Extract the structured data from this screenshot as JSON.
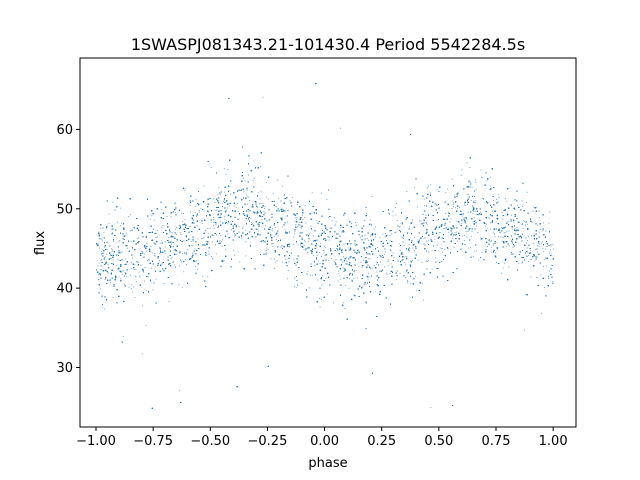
{
  "chart_data": {
    "type": "scatter",
    "title": "1SWASPJ081343.21-101430.4 Period 5542284.5s",
    "xlabel": "phase",
    "ylabel": "flux",
    "xlim": [
      -1.07,
      1.1
    ],
    "ylim": [
      22.5,
      69.0
    ],
    "x_ticks": [
      -1.0,
      -0.75,
      -0.5,
      -0.25,
      0.0,
      0.25,
      0.5,
      0.75,
      1.0
    ],
    "x_tick_labels": [
      "−1.00",
      "−0.75",
      "−0.50",
      "−0.25",
      "0.00",
      "0.25",
      "0.50",
      "0.75",
      "1.00"
    ],
    "y_ticks": [
      30,
      40,
      50,
      60
    ],
    "y_tick_labels": [
      "30",
      "40",
      "50",
      "60"
    ],
    "grid": false,
    "marker_color": "#1f77b4",
    "series": [
      {
        "phase_range": [
          -1.0,
          1.0
        ],
        "approx_point_count": 15000,
        "trend": [
          {
            "phase": -1.0,
            "flux": 44.5
          },
          {
            "phase": -0.9,
            "flux": 44.0
          },
          {
            "phase": -0.8,
            "flux": 43.8
          },
          {
            "phase": -0.7,
            "flux": 45.0
          },
          {
            "phase": -0.6,
            "flux": 46.5
          },
          {
            "phase": -0.5,
            "flux": 47.5
          },
          {
            "phase": -0.4,
            "flux": 49.5
          },
          {
            "phase": -0.3,
            "flux": 49.0
          },
          {
            "phase": -0.2,
            "flux": 47.5
          },
          {
            "phase": -0.1,
            "flux": 46.5
          },
          {
            "phase": 0.0,
            "flux": 44.5
          },
          {
            "phase": 0.1,
            "flux": 44.0
          },
          {
            "phase": 0.2,
            "flux": 43.8
          },
          {
            "phase": 0.3,
            "flux": 45.0
          },
          {
            "phase": 0.4,
            "flux": 46.5
          },
          {
            "phase": 0.5,
            "flux": 47.5
          },
          {
            "phase": 0.6,
            "flux": 49.5
          },
          {
            "phase": 0.7,
            "flux": 49.0
          },
          {
            "phase": 0.8,
            "flux": 47.5
          },
          {
            "phase": 0.9,
            "flux": 46.5
          },
          {
            "phase": 1.0,
            "flux": 44.5
          }
        ],
        "scatter_spread": 2.8,
        "outlier_range": [
          24.5,
          67.0
        ]
      }
    ]
  }
}
